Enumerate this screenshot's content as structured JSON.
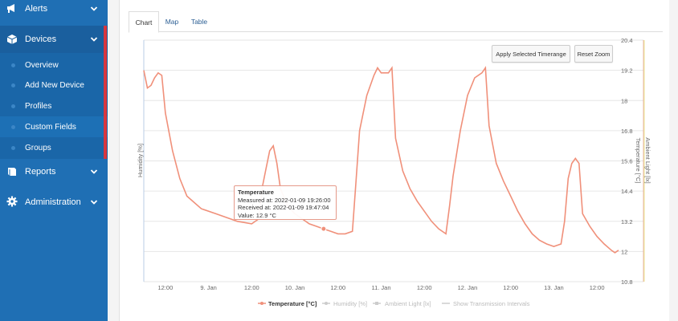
{
  "sidebar": {
    "sections": [
      {
        "label": "Alerts",
        "icon": "megaphone-icon"
      },
      {
        "label": "Devices",
        "icon": "cube-icon"
      },
      {
        "label": "Reports",
        "icon": "book-icon"
      },
      {
        "label": "Administration",
        "icon": "gear-icon"
      }
    ],
    "device_items": [
      {
        "label": "Overview"
      },
      {
        "label": "Add New Device"
      },
      {
        "label": "Profiles"
      },
      {
        "label": "Custom Fields"
      },
      {
        "label": "Groups"
      }
    ]
  },
  "tabs": [
    {
      "label": "Chart"
    },
    {
      "label": "Map"
    },
    {
      "label": "Table"
    }
  ],
  "chart_buttons": {
    "apply": "Apply Selected Timerange",
    "reset": "Reset Zoom"
  },
  "tooltip": {
    "title": "Temperature",
    "measured": "Measured at: 2022-01-09 19:26:00",
    "received": "Received at: 2022-01-09 19:47:04",
    "value": "Value: 12.9 °C"
  },
  "chart_data": {
    "type": "line",
    "xlabel": "",
    "ylabel_left": "Humidity [%]",
    "ylabel_right_1": "Temperature [°C]",
    "ylabel_right_2": "Ambient Light [lx]",
    "x_ticks": [
      "12:00",
      "9. Jan",
      "12:00",
      "10. Jan",
      "12:00",
      "11. Jan",
      "12:00",
      "12. Jan",
      "12:00",
      "13. Jan",
      "12:00"
    ],
    "y_ticks": [
      10.8,
      12,
      13.2,
      14.4,
      15.6,
      16.8,
      18,
      19.2,
      20.4
    ],
    "ylim": [
      10.8,
      20.4
    ],
    "x_range_hours": [
      0,
      132
    ],
    "series": [
      {
        "name": "Temperature [°C]",
        "color": "#f0907a",
        "points": [
          [
            0,
            19.2
          ],
          [
            1,
            18.5
          ],
          [
            2,
            18.6
          ],
          [
            3,
            18.9
          ],
          [
            4,
            19.1
          ],
          [
            5,
            19.0
          ],
          [
            6,
            17.5
          ],
          [
            8,
            16.0
          ],
          [
            10,
            14.9
          ],
          [
            12,
            14.2
          ],
          [
            16,
            13.7
          ],
          [
            20,
            13.5
          ],
          [
            24,
            13.3
          ],
          [
            26,
            13.2
          ],
          [
            28,
            13.15
          ],
          [
            30,
            13.1
          ],
          [
            32,
            13.3
          ],
          [
            33,
            14.6
          ],
          [
            34,
            15.3
          ],
          [
            35,
            16.0
          ],
          [
            36,
            16.2
          ],
          [
            37,
            15.5
          ],
          [
            38,
            14.5
          ],
          [
            40,
            13.8
          ],
          [
            42,
            13.5
          ],
          [
            44,
            13.3
          ],
          [
            46,
            13.1
          ],
          [
            48,
            13.0
          ],
          [
            50,
            12.9
          ],
          [
            52,
            12.8
          ],
          [
            54,
            12.7
          ],
          [
            56,
            12.7
          ],
          [
            58,
            12.8
          ],
          [
            59,
            14.8
          ],
          [
            60,
            16.8
          ],
          [
            62,
            18.2
          ],
          [
            64,
            19.0
          ],
          [
            65,
            19.3
          ],
          [
            66,
            19.1
          ],
          [
            68,
            19.1
          ],
          [
            69,
            19.3
          ],
          [
            70,
            16.5
          ],
          [
            72,
            15.2
          ],
          [
            74,
            14.5
          ],
          [
            76,
            14.0
          ],
          [
            78,
            13.6
          ],
          [
            80,
            13.2
          ],
          [
            82,
            12.9
          ],
          [
            84,
            12.7
          ],
          [
            85,
            13.8
          ],
          [
            86,
            15.0
          ],
          [
            88,
            16.8
          ],
          [
            90,
            18.2
          ],
          [
            92,
            18.9
          ],
          [
            94,
            19.1
          ],
          [
            95,
            19.3
          ],
          [
            96,
            17.0
          ],
          [
            98,
            15.5
          ],
          [
            100,
            14.8
          ],
          [
            102,
            14.2
          ],
          [
            104,
            13.6
          ],
          [
            106,
            13.1
          ],
          [
            108,
            12.7
          ],
          [
            110,
            12.45
          ],
          [
            112,
            12.3
          ],
          [
            114,
            12.2
          ],
          [
            116,
            12.3
          ],
          [
            117,
            13.2
          ],
          [
            118,
            14.9
          ],
          [
            119,
            15.5
          ],
          [
            120,
            15.7
          ],
          [
            121,
            15.5
          ],
          [
            122,
            13.5
          ],
          [
            124,
            13.0
          ],
          [
            126,
            12.6
          ],
          [
            128,
            12.3
          ],
          [
            130,
            12.05
          ],
          [
            131,
            11.95
          ],
          [
            132,
            12.05
          ]
        ]
      },
      {
        "name": "Humidity [%]",
        "color": "#cccccc",
        "points": []
      },
      {
        "name": "Ambient Light [lx]",
        "color": "#cccccc",
        "points": []
      }
    ],
    "legend_extra": "Show Transmission Intervals",
    "legend_position": "bottom"
  }
}
